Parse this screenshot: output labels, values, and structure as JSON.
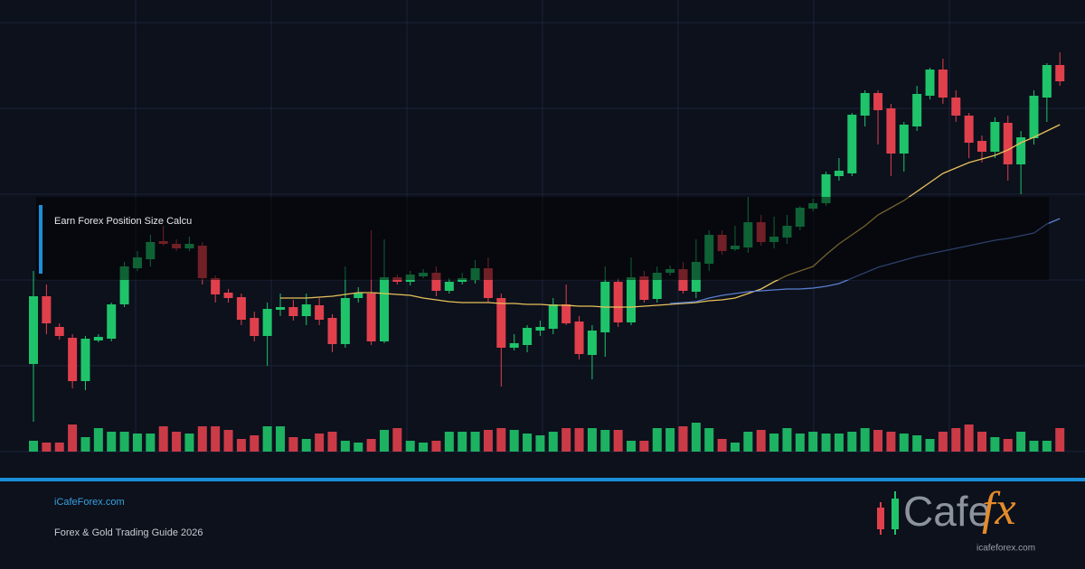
{
  "chart_data": {
    "type": "candlestick",
    "open": [
      97,
      172,
      138,
      126,
      78,
      123,
      125,
      163,
      203,
      213,
      233,
      230,
      225,
      228,
      192,
      176,
      171,
      148,
      128,
      157,
      160,
      150,
      162,
      148,
      119,
      170,
      175,
      122,
      193,
      188,
      194,
      198,
      178,
      188,
      190,
      203,
      170,
      115,
      118,
      134,
      136,
      163,
      144,
      107,
      132,
      188,
      143,
      194,
      169,
      198,
      202,
      177,
      208,
      240,
      224,
      226,
      254,
      232,
      237,
      249,
      269,
      275,
      305,
      308,
      372,
      397,
      380,
      330,
      360,
      394,
      423,
      392,
      372,
      344,
      332,
      364,
      318,
      347,
      392,
      428
    ],
    "high": [
      200,
      185,
      142,
      130,
      128,
      130,
      165,
      210,
      222,
      240,
      250,
      235,
      238,
      232,
      195,
      180,
      175,
      155,
      165,
      175,
      168,
      175,
      170,
      152,
      205,
      182,
      245,
      235,
      196,
      200,
      202,
      205,
      192,
      198,
      212,
      215,
      175,
      130,
      140,
      145,
      170,
      185,
      150,
      140,
      205,
      192,
      215,
      200,
      205,
      206,
      210,
      235,
      245,
      245,
      250,
      282,
      262,
      260,
      262,
      272,
      280,
      310,
      325,
      375,
      400,
      400,
      385,
      365,
      405,
      425,
      435,
      400,
      375,
      350,
      370,
      372,
      355,
      400,
      430,
      442
    ],
    "low": [
      33,
      130,
      124,
      70,
      68,
      121,
      122,
      160,
      200,
      205,
      228,
      222,
      222,
      185,
      165,
      165,
      140,
      122,
      95,
      150,
      145,
      140,
      140,
      110,
      115,
      165,
      118,
      120,
      185,
      184,
      192,
      172,
      175,
      185,
      186,
      165,
      72,
      112,
      110,
      128,
      130,
      140,
      102,
      80,
      105,
      138,
      140,
      165,
      165,
      195,
      175,
      170,
      200,
      218,
      222,
      220,
      228,
      225,
      230,
      245,
      266,
      272,
      300,
      305,
      360,
      340,
      305,
      310,
      355,
      390,
      385,
      365,
      325,
      320,
      325,
      300,
      285,
      340,
      365,
      405
    ],
    "close": [
      172,
      142,
      128,
      78,
      125,
      127,
      163,
      205,
      215,
      232,
      230,
      225,
      230,
      192,
      174,
      170,
      146,
      128,
      158,
      160,
      150,
      163,
      146,
      119,
      170,
      176,
      122,
      193,
      188,
      196,
      198,
      178,
      188,
      192,
      203,
      170,
      115,
      120,
      137,
      138,
      163,
      142,
      108,
      134,
      188,
      143,
      193,
      168,
      198,
      202,
      178,
      210,
      240,
      222,
      228,
      254,
      232,
      238,
      250,
      270,
      275,
      307,
      311,
      373,
      397,
      378,
      330,
      362,
      396,
      423,
      392,
      372,
      342,
      332,
      365,
      318,
      348,
      394,
      428,
      410
    ],
    "volume": [
      12,
      10,
      10,
      30,
      16,
      26,
      22,
      22,
      20,
      20,
      28,
      22,
      20,
      28,
      28,
      24,
      14,
      18,
      28,
      28,
      16,
      14,
      20,
      22,
      12,
      10,
      14,
      24,
      26,
      12,
      10,
      12,
      22,
      22,
      22,
      24,
      26,
      24,
      20,
      18,
      22,
      26,
      26,
      26,
      24,
      24,
      12,
      12,
      26,
      26,
      28,
      32,
      26,
      14,
      10,
      22,
      24,
      20,
      26,
      20,
      22,
      20,
      20,
      22,
      26,
      24,
      22,
      20,
      18,
      14,
      22,
      26,
      30,
      22,
      16,
      14,
      22,
      12,
      12,
      26
    ],
    "moving_averages": [
      {
        "color": "#e8c15a",
        "values": [
          null,
          null,
          null,
          null,
          null,
          null,
          null,
          null,
          null,
          null,
          null,
          null,
          null,
          null,
          null,
          null,
          null,
          null,
          null,
          170,
          170,
          170,
          171,
          172,
          174,
          176,
          176,
          175,
          174,
          173,
          170,
          168,
          166,
          165,
          165,
          165,
          164,
          164,
          163,
          163,
          162,
          162,
          161,
          161,
          160,
          160,
          160,
          161,
          162,
          163,
          164,
          165,
          167,
          168,
          170,
          175,
          180,
          188,
          195,
          200,
          205,
          218,
          230,
          240,
          250,
          262,
          270,
          278,
          288,
          298,
          308,
          314,
          320,
          324,
          328,
          334,
          342,
          348,
          355,
          362
        ]
      },
      {
        "color": "#5b7fd0",
        "values": [
          null,
          null,
          null,
          null,
          null,
          null,
          null,
          null,
          null,
          null,
          null,
          null,
          null,
          null,
          null,
          null,
          null,
          null,
          null,
          null,
          null,
          null,
          null,
          null,
          null,
          null,
          null,
          null,
          null,
          null,
          null,
          null,
          null,
          null,
          null,
          null,
          null,
          null,
          null,
          null,
          null,
          null,
          null,
          null,
          null,
          null,
          null,
          null,
          null,
          164,
          165,
          166,
          170,
          173,
          175,
          177,
          178,
          179,
          180,
          180,
          181,
          183,
          186,
          192,
          198,
          204,
          208,
          212,
          216,
          219,
          222,
          225,
          228,
          231,
          234,
          236,
          239,
          242,
          252,
          258
        ]
      }
    ],
    "ylim": [
      0,
      500
    ],
    "yticks": [
      0,
      95,
      190,
      285,
      380,
      475
    ],
    "grid": true,
    "up_color": "#1fc46a",
    "down_color": "#e0404c",
    "overlay_label": "Earn Forex Position Size Calcu"
  },
  "footer": {
    "site": "iCafeForex.com",
    "guide": "Forex & Gold Trading Guide 2026"
  },
  "logo": {
    "word": "Cafe",
    "mark": "fx",
    "url": "icafeforex.com"
  }
}
